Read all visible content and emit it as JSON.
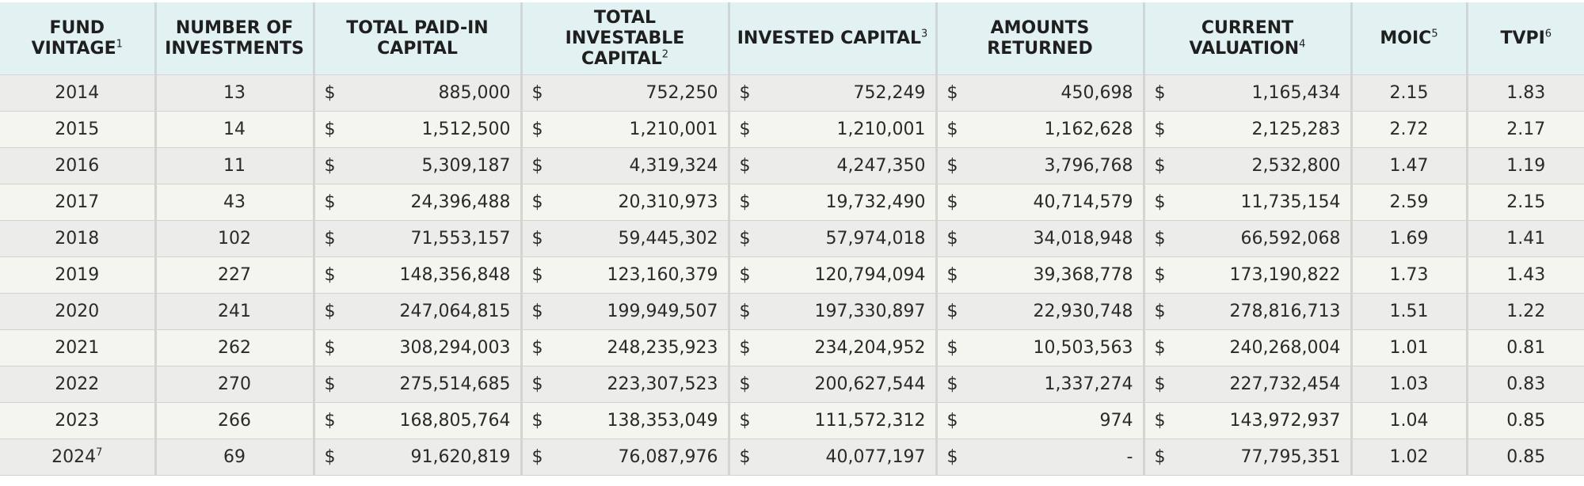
{
  "headers": [
    {
      "label": "FUND VINTAGE",
      "sup": "1"
    },
    {
      "label": "NUMBER OF INVESTMENTS",
      "sup": ""
    },
    {
      "label": "TOTAL PAID-IN CAPITAL",
      "sup": ""
    },
    {
      "label": "TOTAL INVESTABLE CAPITAL",
      "sup": "2"
    },
    {
      "label": "INVESTED CAPITAL",
      "sup": "3"
    },
    {
      "label": "AMOUNTS RETURNED",
      "sup": ""
    },
    {
      "label": "CURRENT VALUATION",
      "sup": "4"
    },
    {
      "label": "MOIC",
      "sup": "5"
    },
    {
      "label": "TVPI",
      "sup": "6"
    }
  ],
  "currency_symbol": "$",
  "rows": [
    {
      "vintage": "2014",
      "vintage_sup": "",
      "investments": "13",
      "paid_in": "885,000",
      "investable": "752,250",
      "invested": "752,249",
      "returned": "450,698",
      "valuation": "1,165,434",
      "moic": "2.15",
      "tvpi": "1.83"
    },
    {
      "vintage": "2015",
      "vintage_sup": "",
      "investments": "14",
      "paid_in": "1,512,500",
      "investable": "1,210,001",
      "invested": "1,210,001",
      "returned": "1,162,628",
      "valuation": "2,125,283",
      "moic": "2.72",
      "tvpi": "2.17"
    },
    {
      "vintage": "2016",
      "vintage_sup": "",
      "investments": "11",
      "paid_in": "5,309,187",
      "investable": "4,319,324",
      "invested": "4,247,350",
      "returned": "3,796,768",
      "valuation": "2,532,800",
      "moic": "1.47",
      "tvpi": "1.19"
    },
    {
      "vintage": "2017",
      "vintage_sup": "",
      "investments": "43",
      "paid_in": "24,396,488",
      "investable": "20,310,973",
      "invested": "19,732,490",
      "returned": "40,714,579",
      "valuation": "11,735,154",
      "moic": "2.59",
      "tvpi": "2.15"
    },
    {
      "vintage": "2018",
      "vintage_sup": "",
      "investments": "102",
      "paid_in": "71,553,157",
      "investable": "59,445,302",
      "invested": "57,974,018",
      "returned": "34,018,948",
      "valuation": "66,592,068",
      "moic": "1.69",
      "tvpi": "1.41"
    },
    {
      "vintage": "2019",
      "vintage_sup": "",
      "investments": "227",
      "paid_in": "148,356,848",
      "investable": "123,160,379",
      "invested": "120,794,094",
      "returned": "39,368,778",
      "valuation": "173,190,822",
      "moic": "1.73",
      "tvpi": "1.43"
    },
    {
      "vintage": "2020",
      "vintage_sup": "",
      "investments": "241",
      "paid_in": "247,064,815",
      "investable": "199,949,507",
      "invested": "197,330,897",
      "returned": "22,930,748",
      "valuation": "278,816,713",
      "moic": "1.51",
      "tvpi": "1.22"
    },
    {
      "vintage": "2021",
      "vintage_sup": "",
      "investments": "262",
      "paid_in": "308,294,003",
      "investable": "248,235,923",
      "invested": "234,204,952",
      "returned": "10,503,563",
      "valuation": "240,268,004",
      "moic": "1.01",
      "tvpi": "0.81"
    },
    {
      "vintage": "2022",
      "vintage_sup": "",
      "investments": "270",
      "paid_in": "275,514,685",
      "investable": "223,307,523",
      "invested": "200,627,544",
      "returned": "1,337,274",
      "valuation": "227,732,454",
      "moic": "1.03",
      "tvpi": "0.83"
    },
    {
      "vintage": "2023",
      "vintage_sup": "",
      "investments": "266",
      "paid_in": "168,805,764",
      "investable": "138,353,049",
      "invested": "111,572,312",
      "returned": "974",
      "valuation": "143,972,937",
      "moic": "1.04",
      "tvpi": "0.85"
    },
    {
      "vintage": "2024",
      "vintage_sup": "7",
      "investments": "69",
      "paid_in": "91,620,819",
      "investable": "76,087,976",
      "invested": "40,077,197",
      "returned": "-",
      "valuation": "77,795,351",
      "moic": "1.02",
      "tvpi": "0.85"
    }
  ]
}
